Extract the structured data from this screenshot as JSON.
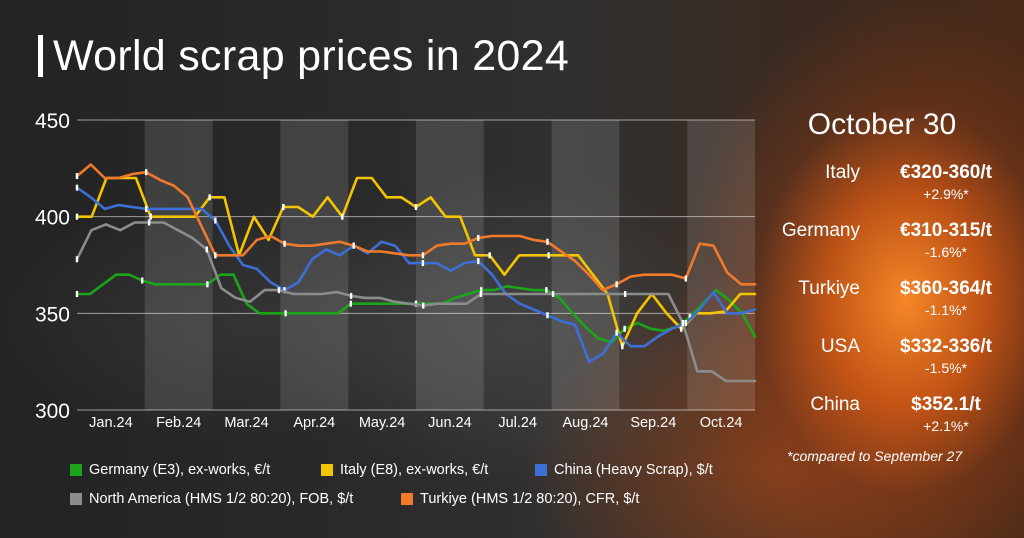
{
  "title": "World scrap prices in 2024",
  "colors": {
    "germany": "#1aa51a",
    "italy": "#f5c400",
    "china": "#3d6fd6",
    "north_america": "#8c8c8c",
    "turkiye": "#f07a2a"
  },
  "chart_data": {
    "type": "line",
    "title": "World scrap prices in 2024",
    "ylim": [
      300,
      450
    ],
    "yticks": [
      300,
      350,
      400,
      450
    ],
    "months": [
      "Jan.24",
      "Feb.24",
      "Mar.24",
      "Apr.24",
      "May.24",
      "Jun.24",
      "Jul.24",
      "Aug.24",
      "Sep.24",
      "Oct.24"
    ],
    "x_points": 44,
    "series": [
      {
        "name": "Germany (E3), ex-works, €/t",
        "color_key": "germany",
        "values": [
          360,
          360,
          365,
          370,
          370,
          367,
          365,
          365,
          365,
          365,
          365,
          370,
          370,
          355,
          350,
          350,
          350,
          350,
          350,
          350,
          350,
          355,
          355,
          355,
          355,
          355,
          355,
          355,
          355,
          358,
          360,
          362,
          362,
          364,
          363,
          362,
          362,
          358,
          350,
          343,
          337,
          335,
          342,
          345,
          342,
          341,
          343,
          348,
          355,
          362,
          357,
          350,
          338
        ]
      },
      {
        "name": "Italy (E8), ex-works, €/t",
        "color_key": "italy",
        "values": [
          400,
          400,
          420,
          420,
          420,
          400,
          400,
          400,
          400,
          410,
          410,
          380,
          400,
          388,
          405,
          405,
          400,
          410,
          400,
          420,
          420,
          410,
          410,
          405,
          410,
          400,
          400,
          380,
          380,
          370,
          380,
          380,
          380,
          380,
          380,
          370,
          360,
          333,
          350,
          360,
          350,
          342,
          350,
          350,
          351,
          360,
          360
        ]
      },
      {
        "name": "China (Heavy Scrap), $/t",
        "color_key": "china",
        "values": [
          415,
          410,
          404,
          406,
          405,
          404,
          404,
          404,
          404,
          404,
          398,
          385,
          375,
          373,
          366,
          362,
          366,
          378,
          383,
          380,
          385,
          381,
          387,
          385,
          376,
          376,
          376,
          372,
          376,
          377,
          370,
          360,
          355,
          352,
          349,
          346,
          344,
          325,
          329,
          340,
          333,
          333,
          338,
          342,
          345,
          352,
          361,
          350,
          350,
          352
        ]
      },
      {
        "name": "North America (HMS 1/2 80:20), FOB, $/t",
        "color_key": "north_america",
        "values": [
          378,
          393,
          396,
          393,
          397,
          397,
          397,
          393,
          389,
          383,
          363,
          358,
          356,
          362,
          362,
          360,
          360,
          360,
          361,
          359,
          358,
          358,
          356,
          355,
          354,
          355,
          355,
          355,
          360,
          360,
          360,
          360,
          360,
          360,
          360,
          360,
          360,
          360,
          360,
          360,
          360,
          360,
          345,
          320,
          320,
          315,
          315,
          315
        ]
      },
      {
        "name": "Turkiye (HMS 1/2 80:20), CFR, $/t",
        "color_key": "turkiye",
        "values": [
          421,
          427,
          420,
          420,
          422,
          423,
          419,
          416,
          410,
          395,
          380,
          380,
          380,
          388,
          390,
          386,
          385,
          385,
          386,
          387,
          385,
          382,
          382,
          381,
          380,
          380,
          385,
          386,
          386,
          389,
          390,
          390,
          390,
          388,
          387,
          382,
          377,
          370,
          362,
          365,
          369,
          370,
          370,
          370,
          368,
          386,
          385,
          371,
          365,
          365
        ]
      }
    ]
  },
  "snapshot": {
    "date": "October 30",
    "rows": [
      {
        "country": "Italy",
        "price": "€320-360/t",
        "change": "+2.9%*"
      },
      {
        "country": "Germany",
        "price": "€310-315/t",
        "change": "-1.6%*"
      },
      {
        "country": "Turkiye",
        "price": "$360-364/t",
        "change": "-1.1%*"
      },
      {
        "country": "USA",
        "price": "$332-336/t",
        "change": "-1.5%*"
      },
      {
        "country": "China",
        "price": "$352.1/t",
        "change": "+2.1%*"
      }
    ],
    "footnote": "*compared to September 27"
  },
  "legend": [
    {
      "label": "Germany (E3), ex-works, €/t",
      "color_key": "germany"
    },
    {
      "label": "Italy (E8), ex-works, €/t",
      "color_key": "italy"
    },
    {
      "label": "China (Heavy Scrap), $/t",
      "color_key": "china"
    },
    {
      "label": "North America (HMS 1/2 80:20), FOB, $/t",
      "color_key": "north_america"
    },
    {
      "label": "Turkiye (HMS 1/2 80:20), CFR, $/t",
      "color_key": "turkiye"
    }
  ]
}
